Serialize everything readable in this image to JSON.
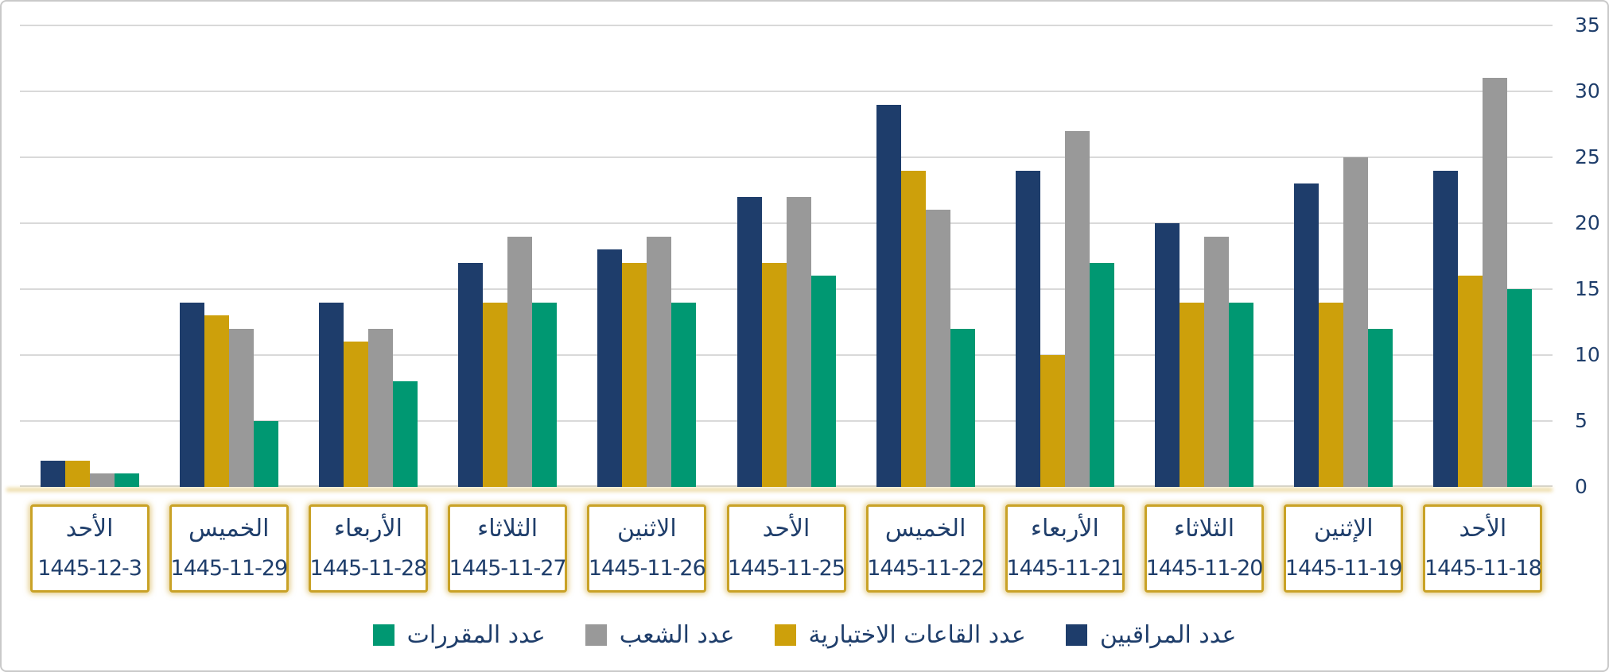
{
  "chart_data": {
    "type": "bar",
    "title": "",
    "xlabel": "",
    "ylabel": "",
    "direction": "rtl",
    "ylim": [
      0,
      35
    ],
    "yticks": [
      0,
      5,
      10,
      15,
      20,
      25,
      30,
      35
    ],
    "yaxis_side": "right",
    "grid": true,
    "categories": [
      {
        "day": "الأحد",
        "date": "1445-12-3"
      },
      {
        "day": "الخميس",
        "date": "1445-11-29"
      },
      {
        "day": "الأربعاء",
        "date": "1445-11-28"
      },
      {
        "day": "الثلاثاء",
        "date": "1445-11-27"
      },
      {
        "day": "الاثنين",
        "date": "1445-11-26"
      },
      {
        "day": "الأحد",
        "date": "1445-11-25"
      },
      {
        "day": "الخميس",
        "date": "1445-11-22"
      },
      {
        "day": "الأربعاء",
        "date": "1445-11-21"
      },
      {
        "day": "الثلاثاء",
        "date": "1445-11-20"
      },
      {
        "day": "الإثنين",
        "date": "1445-11-19"
      },
      {
        "day": "الأحد",
        "date": "1445-11-18"
      }
    ],
    "series": [
      {
        "name": "عدد المراقبين",
        "color": "#1e3d6b",
        "values": [
          2,
          14,
          14,
          17,
          18,
          22,
          29,
          24,
          20,
          23,
          24
        ]
      },
      {
        "name": "عدد القاعات الاختبارية",
        "color": "#cda00b",
        "values": [
          2,
          13,
          11,
          14,
          17,
          17,
          24,
          10,
          14,
          14,
          16
        ]
      },
      {
        "name": "عدد الشعب",
        "color": "#999999",
        "values": [
          1,
          12,
          12,
          19,
          19,
          22,
          21,
          27,
          19,
          25,
          31
        ]
      },
      {
        "name": "عدد المقررات",
        "color": "#009872",
        "values": [
          1,
          5,
          8,
          14,
          14,
          16,
          12,
          17,
          14,
          12,
          15
        ]
      }
    ],
    "bar_order_left_to_right": [
      "عدد المراقبين",
      "عدد القاعات الاختبارية",
      "عدد الشعب",
      "عدد المقررات"
    ],
    "legend": {
      "position": "bottom",
      "entries_left_to_right": [
        "عدد المقررات",
        "عدد الشعب",
        "عدد القاعات الاختبارية",
        "عدد المراقبين"
      ]
    },
    "colors": {
      "axis_text": "#1f3e6b",
      "gridline": "#d9d9d9",
      "category_box_border": "#c9a227",
      "category_box_text": "#1f3e6b",
      "baseline_glow": "#e8d28e",
      "frame_border": "#c9c9c9"
    }
  }
}
